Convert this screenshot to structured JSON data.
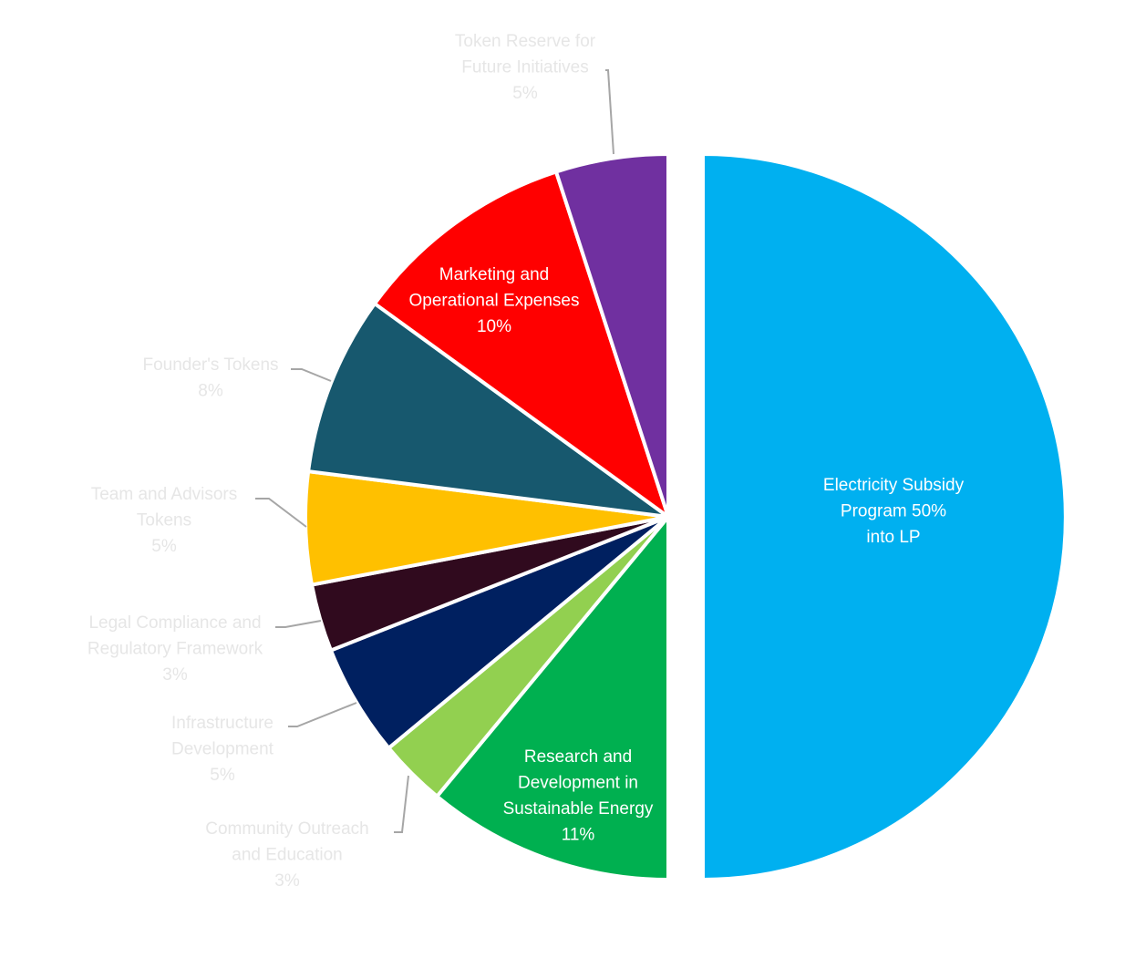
{
  "chart_data": {
    "type": "pie",
    "title": "",
    "start_angle_deg": 0,
    "direction": "clockwise",
    "exploded_slice": 0,
    "slices": [
      {
        "label_lines": [
          "Electricity Subsidy",
          "Program 50%",
          "into LP"
        ],
        "value": 50,
        "color": "#00b0f0",
        "label_position": "inside"
      },
      {
        "label_lines": [
          "Research and",
          "Development in",
          "Sustainable Energy",
          "11%"
        ],
        "value": 11,
        "color": "#00b050",
        "label_position": "inside"
      },
      {
        "label_lines": [
          "Community Outreach",
          "and Education",
          "3%"
        ],
        "value": 3,
        "color": "#92d050",
        "label_position": "outside"
      },
      {
        "label_lines": [
          "Infrastructure",
          "Development",
          "5%"
        ],
        "value": 5,
        "color": "#002060",
        "label_position": "outside"
      },
      {
        "label_lines": [
          "Legal Compliance and",
          "Regulatory Framework",
          "3%"
        ],
        "value": 3,
        "color": "#300a1e",
        "label_position": "outside"
      },
      {
        "label_lines": [
          "Team and Advisors",
          "Tokens",
          "5%"
        ],
        "value": 5,
        "color": "#ffc000",
        "label_position": "outside"
      },
      {
        "label_lines": [
          "Founder's Tokens",
          "8%"
        ],
        "value": 8,
        "color": "#17586e",
        "label_position": "outside"
      },
      {
        "label_lines": [
          "Marketing and",
          "Operational Expenses",
          "10%"
        ],
        "value": 10,
        "color": "#ff0000",
        "label_position": "inside"
      },
      {
        "label_lines": [
          "Token Reserve for",
          "Future Initiatives",
          "5%"
        ],
        "value": 5,
        "color": "#7030a0",
        "label_position": "outside"
      }
    ]
  }
}
